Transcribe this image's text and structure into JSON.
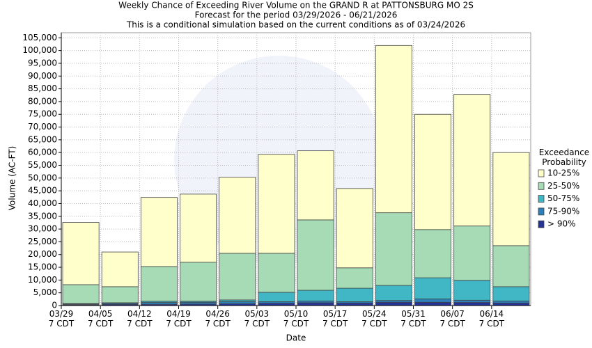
{
  "chart_data": {
    "type": "stacked_bar",
    "title": "Weekly Chance of Exceeding River Volume on the GRAND R at PATTONSBURG MO 2S",
    "subtitle": "Forecast for the period 03/29/2026 - 06/21/2026",
    "subtitle2": "This is a conditional simulation based on the current conditions as of 03/24/2026",
    "x_label": "Date",
    "y_label": "Volume (AC-FT)",
    "legend_title": "Exceedance Probability",
    "legend": "right",
    "categories": [
      "03/29 7 CDT",
      "04/05 7 CDT",
      "04/12 7 CDT",
      "04/19 7 CDT",
      "04/26 7 CDT",
      "05/03 7 CDT",
      "05/10 7 CDT",
      "05/17 7 CDT",
      "05/24 7 CDT",
      "05/31 7 CDT",
      "06/07 7 CDT",
      "06/14 7 CDT"
    ],
    "series": [
      {
        "name": "> 90%",
        "color": "#253494",
        "values": [
          300,
          500,
          500,
          600,
          700,
          900,
          1100,
          1000,
          1300,
          1300,
          1200,
          1000
        ]
      },
      {
        "name": "75-90%",
        "color": "#2c7fb8",
        "values": [
          300,
          400,
          700,
          700,
          800,
          600,
          700,
          500,
          700,
          1300,
          900,
          800
        ]
      },
      {
        "name": "50-75%",
        "color": "#41b6c4",
        "values": [
          200,
          200,
          500,
          400,
          700,
          3700,
          4200,
          5300,
          5900,
          8300,
          7800,
          5600
        ]
      },
      {
        "name": "25-50%",
        "color": "#a6dbb5",
        "values": [
          7400,
          6300,
          13600,
          15300,
          18300,
          15300,
          27600,
          8000,
          28500,
          18900,
          21300,
          16100
        ]
      },
      {
        "name": "10-25%",
        "color": "#ffffcc",
        "values": [
          24400,
          13600,
          27100,
          26700,
          29800,
          38800,
          27100,
          31100,
          65600,
          45200,
          51600,
          36500
        ]
      }
    ],
    "ylim": [
      0,
      107000
    ],
    "yticks": [
      0,
      {
        "value": 5000,
        "label": "5,000"
      },
      {
        "value": 10000,
        "label": "10,000"
      },
      {
        "value": 15000,
        "label": "15,000"
      },
      {
        "value": 20000,
        "label": "20,000"
      },
      {
        "value": 25000,
        "label": "25,000"
      },
      {
        "value": 30000,
        "label": "30,000"
      },
      {
        "value": 35000,
        "label": "35,000"
      },
      {
        "value": 40000,
        "label": "40,000"
      },
      {
        "value": 45000,
        "label": "45,000"
      },
      {
        "value": 50000,
        "label": "50,000"
      },
      {
        "value": 55000,
        "label": "55,000"
      },
      {
        "value": 60000,
        "label": "60,000"
      },
      {
        "value": 65000,
        "label": "65,000"
      },
      {
        "value": 70000,
        "label": "70,000"
      },
      {
        "value": 75000,
        "label": "75,000"
      },
      {
        "value": 80000,
        "label": "80,000"
      },
      {
        "value": 85000,
        "label": "85,000"
      },
      {
        "value": 90000,
        "label": "90,000"
      },
      {
        "value": 95000,
        "label": "95,000"
      },
      {
        "value": 100000,
        "label": "100,000"
      },
      {
        "value": 105000,
        "label": "105,000"
      }
    ],
    "grid": true
  }
}
